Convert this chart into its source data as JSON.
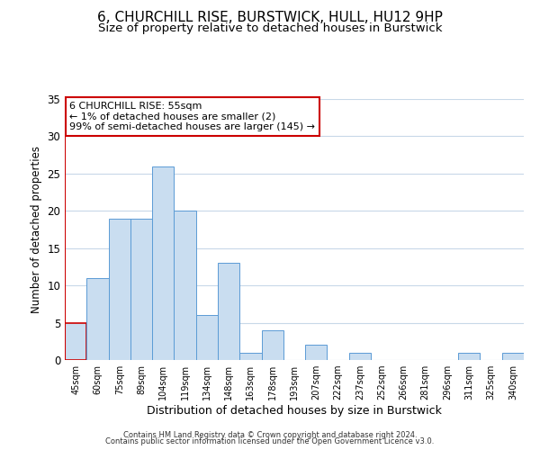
{
  "title": "6, CHURCHILL RISE, BURSTWICK, HULL, HU12 9HP",
  "subtitle": "Size of property relative to detached houses in Burstwick",
  "xlabel": "Distribution of detached houses by size in Burstwick",
  "ylabel": "Number of detached properties",
  "footer_lines": [
    "Contains HM Land Registry data © Crown copyright and database right 2024.",
    "Contains public sector information licensed under the Open Government Licence v3.0."
  ],
  "bin_labels": [
    "45sqm",
    "60sqm",
    "75sqm",
    "89sqm",
    "104sqm",
    "119sqm",
    "134sqm",
    "148sqm",
    "163sqm",
    "178sqm",
    "193sqm",
    "207sqm",
    "222sqm",
    "237sqm",
    "252sqm",
    "266sqm",
    "281sqm",
    "296sqm",
    "311sqm",
    "325sqm",
    "340sqm"
  ],
  "bar_heights": [
    5,
    11,
    19,
    19,
    26,
    20,
    6,
    13,
    1,
    4,
    0,
    2,
    0,
    1,
    0,
    0,
    0,
    0,
    1,
    0,
    1
  ],
  "bar_color": "#c9ddf0",
  "bar_edge_color": "#5b9bd5",
  "highlight_bar_index": 0,
  "highlight_bar_edge_color": "#cc0000",
  "annotation_title": "6 CHURCHILL RISE: 55sqm",
  "annotation_line1": "← 1% of detached houses are smaller (2)",
  "annotation_line2": "99% of semi-detached houses are larger (145) →",
  "annotation_box_color": "#ffffff",
  "annotation_box_edge_color": "#cc0000",
  "ylim": [
    0,
    35
  ],
  "yticks": [
    0,
    5,
    10,
    15,
    20,
    25,
    30,
    35
  ],
  "background_color": "#ffffff",
  "grid_color": "#c8d8e8",
  "title_fontsize": 11,
  "subtitle_fontsize": 9.5
}
